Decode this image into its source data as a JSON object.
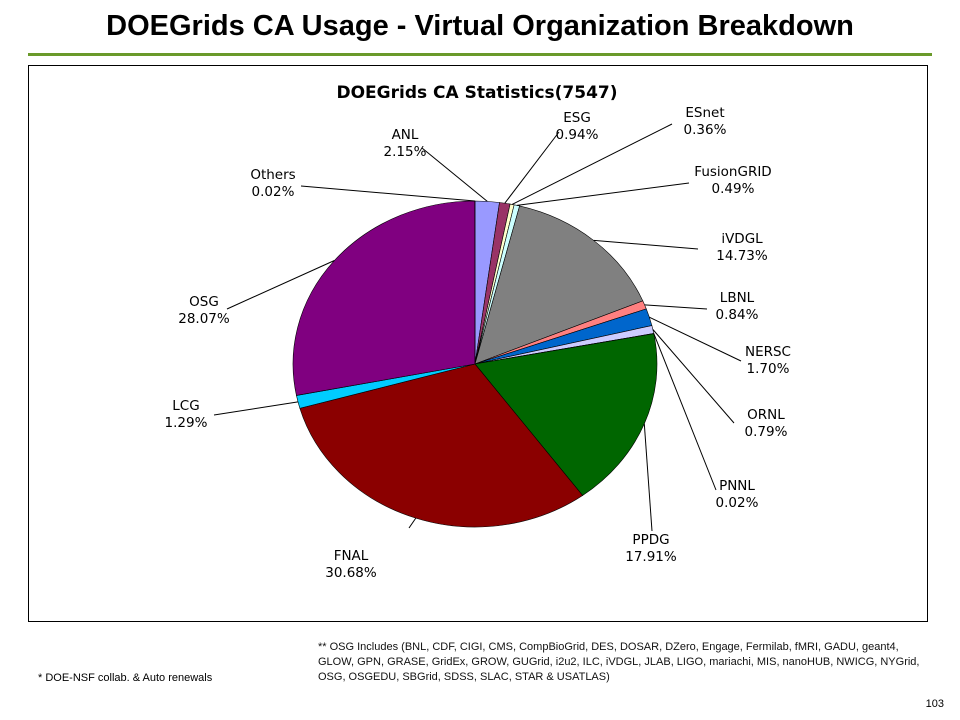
{
  "slide": {
    "title": "DOEGrids CA Usage - Virtual Organization Breakdown",
    "page_number": "103",
    "footnote_left": "* DOE-NSF collab. & Auto renewals",
    "footnote_right": "** OSG Includes (BNL, CDF, CIGI, CMS, CompBioGrid, DES, DOSAR, DZero, Engage, Fermilab, fMRI, GADU, geant4, GLOW, GPN, GRASE, GridEx, GROW, GUGrid, i2u2, ILC, iVDGL, JLAB, LIGO, mariachi, MIS, nanoHUB, NWICG, NYGrid, OSG, OSGEDU, SBGrid, SDSS, SLAC, STAR & USATLAS)",
    "accent_color": "#6a9a2a"
  },
  "chart_data": {
    "type": "pie",
    "title": "DOEGrids CA Statistics(7547)",
    "start_angle_deg": 0,
    "direction": "clockwise",
    "slices": [
      {
        "label": "ANL",
        "value": 2.15,
        "pct_text": "2.15%",
        "color": "#9999ff"
      },
      {
        "label": "ESG",
        "value": 0.94,
        "pct_text": "0.94%",
        "color": "#993366"
      },
      {
        "label": "ESnet",
        "value": 0.36,
        "pct_text": "0.36%",
        "color": "#ffffcc"
      },
      {
        "label": "FusionGRID",
        "value": 0.49,
        "pct_text": "0.49%",
        "color": "#ccffff"
      },
      {
        "label": "iVDGL",
        "value": 14.73,
        "pct_text": "14.73%",
        "color": "#808080"
      },
      {
        "label": "LBNL",
        "value": 0.84,
        "pct_text": "0.84%",
        "color": "#ff8080"
      },
      {
        "label": "NERSC",
        "value": 1.7,
        "pct_text": "1.70%",
        "color": "#0066cc"
      },
      {
        "label": "ORNL",
        "value": 0.79,
        "pct_text": "0.79%",
        "color": "#ccccff"
      },
      {
        "label": "PNNL",
        "value": 0.02,
        "pct_text": "0.02%",
        "color": "#000080"
      },
      {
        "label": "PPDG",
        "value": 17.91,
        "pct_text": "17.91%",
        "color": "#006600"
      },
      {
        "label": "FNAL",
        "value": 30.68,
        "pct_text": "30.68%",
        "color": "#8b0000"
      },
      {
        "label": "LCG",
        "value": 1.29,
        "pct_text": "1.29%",
        "color": "#00ccff"
      },
      {
        "label": "OSG",
        "value": 28.07,
        "pct_text": "28.07%",
        "color": "#800080"
      },
      {
        "label": "Others",
        "value": 0.02,
        "pct_text": "0.02%",
        "color": "#ff00ff"
      }
    ]
  }
}
